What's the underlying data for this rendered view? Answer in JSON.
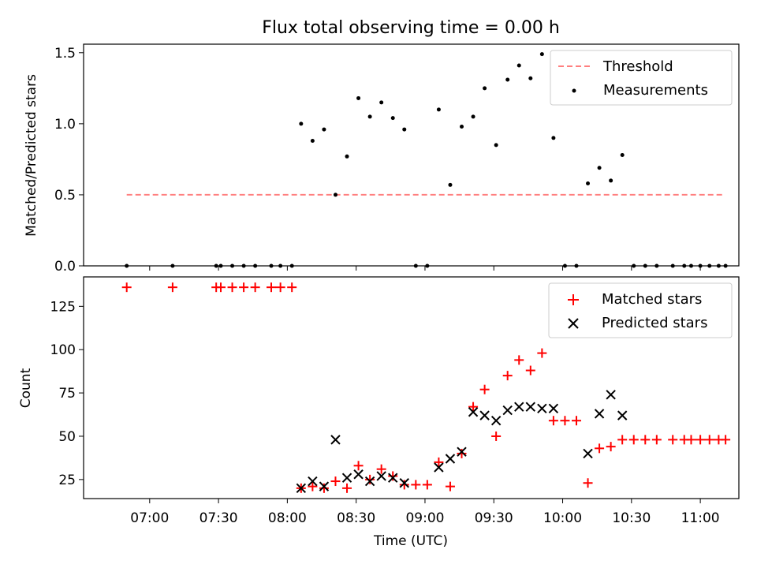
{
  "title": "Flux total observing time = 0.00 h",
  "chart_data": [
    {
      "type": "scatter",
      "ylabel": "Matched/Predicted stars",
      "ylim": [
        0,
        1.56
      ],
      "yticks": [
        "0.0",
        "0.5",
        "1.0",
        "1.5"
      ],
      "xlim_hours": [
        6.52,
        11.28
      ],
      "legend_position": "top-right",
      "grid": false,
      "threshold": {
        "name": "Threshold",
        "value": 0.5,
        "x": [
          "06:50",
          "11:10"
        ],
        "color": "#ff7f7f"
      },
      "series": [
        {
          "name": "Measurements",
          "color": "#000000",
          "points": [
            [
              "06:50",
              0
            ],
            [
              "07:10",
              0
            ],
            [
              "07:29",
              0
            ],
            [
              "07:31",
              0
            ],
            [
              "07:36",
              0
            ],
            [
              "07:41",
              0
            ],
            [
              "07:46",
              0
            ],
            [
              "07:53",
              0
            ],
            [
              "07:57",
              0
            ],
            [
              "08:02",
              0
            ],
            [
              "08:06",
              1.0
            ],
            [
              "08:11",
              0.88
            ],
            [
              "08:16",
              0.96
            ],
            [
              "08:21",
              0.5
            ],
            [
              "08:26",
              0.77
            ],
            [
              "08:31",
              1.18
            ],
            [
              "08:36",
              1.05
            ],
            [
              "08:41",
              1.15
            ],
            [
              "08:46",
              1.04
            ],
            [
              "08:51",
              0.96
            ],
            [
              "08:56",
              0
            ],
            [
              "09:01",
              0
            ],
            [
              "09:06",
              1.1
            ],
            [
              "09:11",
              0.57
            ],
            [
              "09:16",
              0.98
            ],
            [
              "09:21",
              1.05
            ],
            [
              "09:26",
              1.25
            ],
            [
              "09:31",
              0.85
            ],
            [
              "09:36",
              1.31
            ],
            [
              "09:41",
              1.41
            ],
            [
              "09:46",
              1.32
            ],
            [
              "09:51",
              1.49
            ],
            [
              "09:56",
              0.9
            ],
            [
              "10:01",
              0
            ],
            [
              "10:06",
              0
            ],
            [
              "10:11",
              0.58
            ],
            [
              "10:16",
              0.69
            ],
            [
              "10:21",
              0.6
            ],
            [
              "10:26",
              0.78
            ],
            [
              "10:31",
              0
            ],
            [
              "10:36",
              0
            ],
            [
              "10:41",
              0
            ],
            [
              "10:48",
              0
            ],
            [
              "10:53",
              0
            ],
            [
              "10:56",
              0
            ],
            [
              "11:00",
              0
            ],
            [
              "11:04",
              0
            ],
            [
              "11:08",
              0
            ],
            [
              "11:11",
              0
            ]
          ]
        }
      ]
    },
    {
      "type": "scatter",
      "xlabel": "Time (UTC)",
      "ylabel": "Count",
      "ylim": [
        14,
        142
      ],
      "yticks": [
        "25",
        "50",
        "75",
        "100",
        "125"
      ],
      "xlim_hours": [
        6.52,
        11.28
      ],
      "xticks": [
        "07:00",
        "07:30",
        "08:00",
        "08:30",
        "09:00",
        "09:30",
        "10:00",
        "10:30",
        "11:00"
      ],
      "legend_position": "top-right",
      "grid": false,
      "series": [
        {
          "name": "Matched stars",
          "color": "#ff0000",
          "marker": "plus",
          "points": [
            [
              "06:50",
              136
            ],
            [
              "07:10",
              136
            ],
            [
              "07:29",
              136
            ],
            [
              "07:31",
              136
            ],
            [
              "07:36",
              136
            ],
            [
              "07:41",
              136
            ],
            [
              "07:46",
              136
            ],
            [
              "07:53",
              136
            ],
            [
              "07:57",
              136
            ],
            [
              "08:02",
              136
            ],
            [
              "08:06",
              20
            ],
            [
              "08:11",
              21
            ],
            [
              "08:16",
              20
            ],
            [
              "08:21",
              24
            ],
            [
              "08:26",
              20
            ],
            [
              "08:31",
              33
            ],
            [
              "08:36",
              25
            ],
            [
              "08:41",
              31
            ],
            [
              "08:46",
              27
            ],
            [
              "08:51",
              22
            ],
            [
              "08:56",
              22
            ],
            [
              "09:01",
              22
            ],
            [
              "09:06",
              35
            ],
            [
              "09:11",
              21
            ],
            [
              "09:16",
              40
            ],
            [
              "09:21",
              67
            ],
            [
              "09:26",
              77
            ],
            [
              "09:31",
              50
            ],
            [
              "09:36",
              85
            ],
            [
              "09:41",
              94
            ],
            [
              "09:46",
              88
            ],
            [
              "09:51",
              98
            ],
            [
              "09:56",
              59
            ],
            [
              "10:01",
              59
            ],
            [
              "10:06",
              59
            ],
            [
              "10:11",
              23
            ],
            [
              "10:16",
              43
            ],
            [
              "10:21",
              44
            ],
            [
              "10:26",
              48
            ],
            [
              "10:31",
              48
            ],
            [
              "10:36",
              48
            ],
            [
              "10:41",
              48
            ],
            [
              "10:48",
              48
            ],
            [
              "10:53",
              48
            ],
            [
              "10:56",
              48
            ],
            [
              "11:00",
              48
            ],
            [
              "11:04",
              48
            ],
            [
              "11:08",
              48
            ],
            [
              "11:11",
              48
            ]
          ]
        },
        {
          "name": "Predicted stars",
          "color": "#000000",
          "marker": "x",
          "points": [
            [
              "08:06",
              20
            ],
            [
              "08:11",
              24
            ],
            [
              "08:16",
              21
            ],
            [
              "08:21",
              48
            ],
            [
              "08:26",
              26
            ],
            [
              "08:31",
              28
            ],
            [
              "08:36",
              24
            ],
            [
              "08:41",
              27
            ],
            [
              "08:46",
              26
            ],
            [
              "08:51",
              23
            ],
            [
              "09:06",
              32
            ],
            [
              "09:11",
              37
            ],
            [
              "09:16",
              41
            ],
            [
              "09:21",
              64
            ],
            [
              "09:26",
              62
            ],
            [
              "09:31",
              59
            ],
            [
              "09:36",
              65
            ],
            [
              "09:41",
              67
            ],
            [
              "09:46",
              67
            ],
            [
              "09:51",
              66
            ],
            [
              "09:56",
              66
            ],
            [
              "10:11",
              40
            ],
            [
              "10:16",
              63
            ],
            [
              "10:21",
              74
            ],
            [
              "10:26",
              62
            ]
          ]
        }
      ]
    }
  ]
}
